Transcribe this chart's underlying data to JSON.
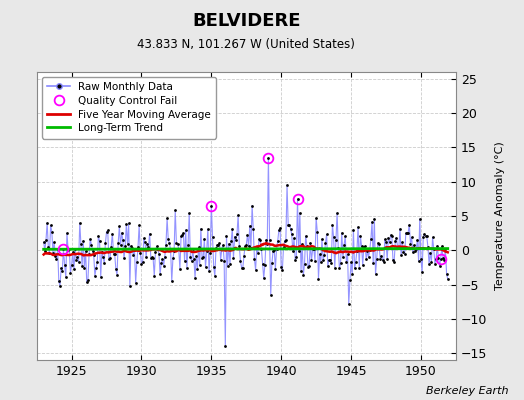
{
  "title": "BELVIDERE",
  "subtitle": "43.833 N, 101.267 W (United States)",
  "ylabel": "Temperature Anomaly (°C)",
  "credit": "Berkeley Earth",
  "ylim": [
    -16,
    26
  ],
  "yticks": [
    -15,
    -10,
    -5,
    0,
    5,
    10,
    15,
    20,
    25
  ],
  "xlim": [
    1922.5,
    1952.5
  ],
  "xticks": [
    1925,
    1930,
    1935,
    1940,
    1945,
    1950
  ],
  "fig_bg_color": "#e8e8e8",
  "plot_bg_color": "#ffffff",
  "grid_color": "#cccccc",
  "raw_line_color": "#8888ff",
  "raw_marker_color": "#000000",
  "moving_avg_color": "#dd0000",
  "trend_color": "#00bb00",
  "qc_fail_color": "#ff00ff",
  "start_year": 1923,
  "months": 348,
  "seed": 42,
  "moving_avg_window": 60
}
